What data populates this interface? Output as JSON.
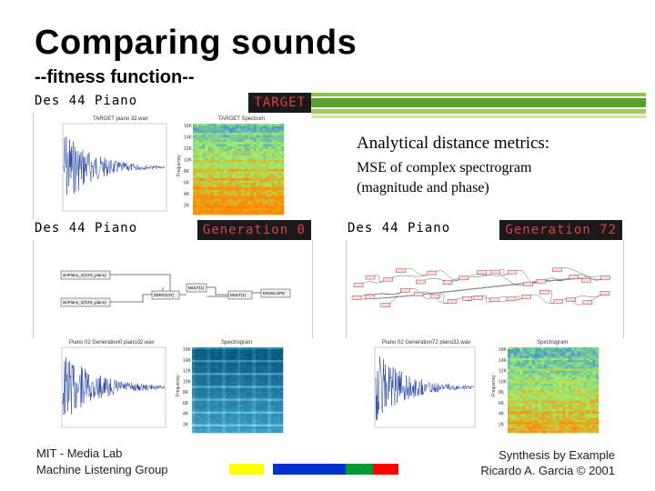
{
  "slide": {
    "title": "Comparing sounds",
    "subtitle": "--fitness function--"
  },
  "panels": [
    {
      "name": "Des 44 Piano",
      "tag": "TARGET"
    },
    {
      "name": "Des 44 Piano",
      "tag": "Generation 0"
    },
    {
      "name": "Des 44 Piano",
      "tag": "Generation 72"
    }
  ],
  "charts": {
    "target_wave_title": "TARGET piano 32.wav",
    "target_spec_title": "TARGET Spectrum",
    "gen0_wave_title": "Piano 02 Generation0 piano32.wav",
    "gen0_spec_title": "Spectrogram",
    "gen72_wave_title": "Piano 02 Generation72 piano32.wav",
    "gen72_spec_title": "Spectrogram",
    "freq_label": "Frequency",
    "freq_ticks": [
      "16K",
      "14K",
      "12K",
      "10K",
      "8K",
      "6K",
      "4K",
      "2K"
    ]
  },
  "gen0_nodes": [
    "sinPiano_1(XXX_piano)",
    "sinPiano_1(XXX_piano)",
    "ZERO(CR)",
    "MULT(1)",
    "MULT(1)",
    "ENVELOPE"
  ],
  "metrics": {
    "heading": "Analytical distance metrics:",
    "line1": "MSE of complex spectrogram",
    "line2": "(magnitude and phase)"
  },
  "footer": {
    "left_line1": "MIT - Media Lab",
    "left_line2": "Machine Listening Group",
    "right_line1": "Synthesis by Example",
    "right_line2": "Ricardo A. Garcia © 2001"
  },
  "colors": {
    "accent_green": "#5aa02c",
    "tag_text": "#e04040",
    "wave_blue": "#1f3f9e",
    "bar_yellow": "#ffff00",
    "bar_blue": "#0033cc",
    "bar_green": "#009933",
    "bar_red": "#ff0000"
  }
}
